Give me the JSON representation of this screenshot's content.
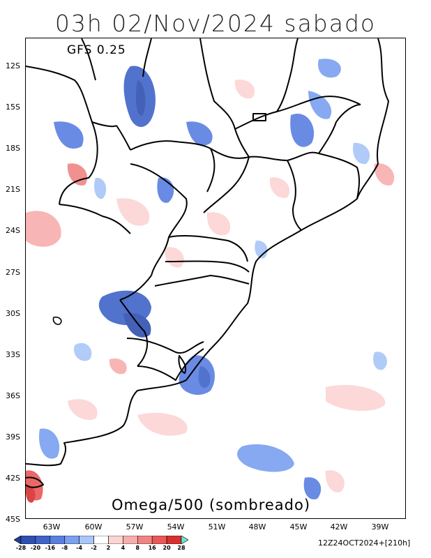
{
  "title": "03h 02/Nov/2024 sabado",
  "model": "GFS 0.25",
  "subtitle": "Omega/500 (sombreado)",
  "run_info": "12Z24OCT2024+[210h]",
  "axes": {
    "lat_labels": [
      "12S",
      "15S",
      "18S",
      "21S",
      "24S",
      "27S",
      "30S",
      "33S",
      "36S",
      "39S",
      "42S",
      "45S"
    ],
    "lon_labels": [
      "63W",
      "60W",
      "57W",
      "54W",
      "51W",
      "48W",
      "45W",
      "42W",
      "39W"
    ]
  },
  "colorbar": {
    "ticks": [
      "-28",
      "-20",
      "-16",
      "-8",
      "-4",
      "-2",
      "2",
      "4",
      "8",
      "16",
      "20",
      "28"
    ],
    "colors": [
      "#1f3f99",
      "#2f50b0",
      "#3f63c8",
      "#5a7fe0",
      "#7aa0f0",
      "#a8c6f8",
      "#ffffff",
      "#fcd4d4",
      "#f8aeae",
      "#f08484",
      "#e85858",
      "#d83030",
      "#66e8d8"
    ]
  }
}
